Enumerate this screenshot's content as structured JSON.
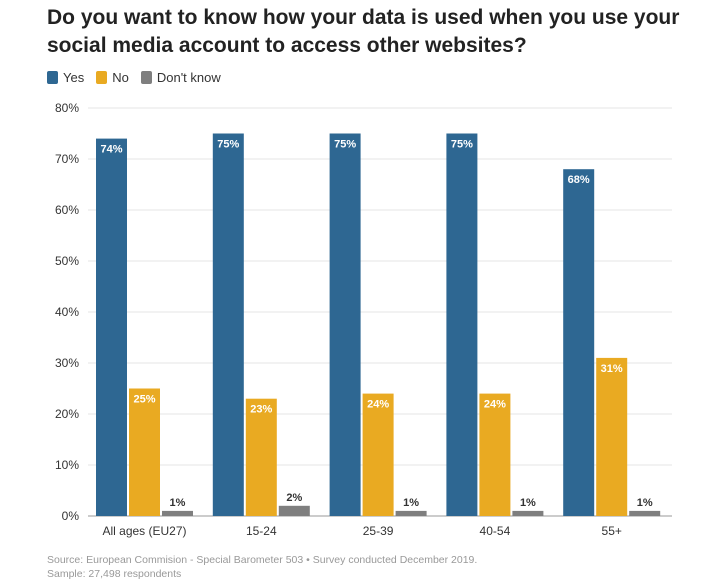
{
  "chart_data": {
    "type": "bar",
    "title": "Do you want to know how your data is used when you use your social media account to access other websites?",
    "categories": [
      "All ages (EU27)",
      "15-24",
      "25-39",
      "40-54",
      "55+"
    ],
    "series": [
      {
        "name": "Yes",
        "color": "#2e6792",
        "values": [
          74,
          75,
          75,
          75,
          68
        ]
      },
      {
        "name": "No",
        "color": "#e9aa22",
        "values": [
          25,
          23,
          24,
          24,
          31
        ]
      },
      {
        "name": "Don't know",
        "color": "#7f7f7f",
        "values": [
          1,
          2,
          1,
          1,
          1
        ]
      }
    ],
    "value_suffix": "%",
    "ylim": [
      0,
      80
    ],
    "yticks": [
      0,
      10,
      20,
      30,
      40,
      50,
      60,
      70,
      80
    ],
    "grid": true,
    "legend_position": "top-left"
  },
  "footer": {
    "source": "Source: European Commision - Special Barometer 503 • Survey conducted December 2019.",
    "sample": "Sample: 27,498 respondents"
  }
}
